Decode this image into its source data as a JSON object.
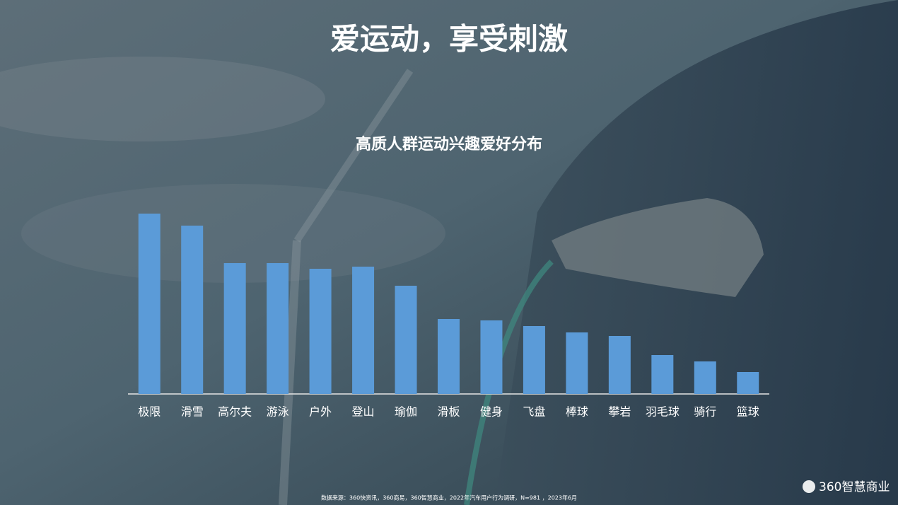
{
  "header": {
    "title": "爱运动，享受刺激"
  },
  "chart_data": {
    "type": "bar",
    "title": "高质人群运动兴趣爱好分布",
    "categories": [
      "极限",
      "滑雪",
      "高尔夫",
      "游泳",
      "户外",
      "登山",
      "瑜伽",
      "滑板",
      "健身",
      "飞盘",
      "棒球",
      "攀岩",
      "羽毛球",
      "骑行",
      "篮球"
    ],
    "values": [
      255,
      238,
      185,
      185,
      177,
      180,
      153,
      106,
      104,
      96,
      87,
      82,
      55,
      46,
      31
    ],
    "color": "#5b9bd8",
    "ylim": [
      0,
      260
    ]
  },
  "footer": {
    "source": "数据来源：360快资讯，360商易，360智慧商业，2022年汽车用户行为调研，N=981 ，2023年6月",
    "logo": "360智慧商业"
  }
}
